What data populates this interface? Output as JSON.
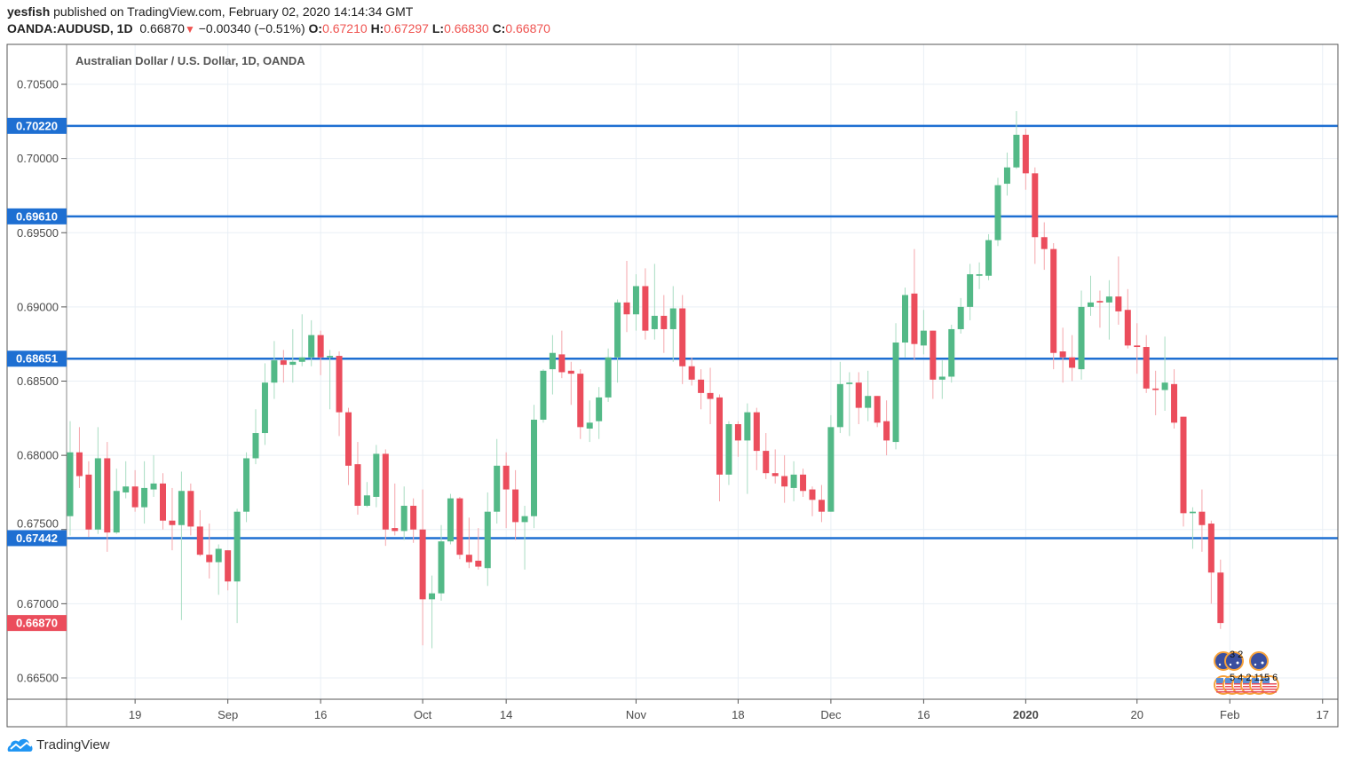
{
  "header": {
    "author": "yesfish",
    "published_text": "published on TradingView.com, February 02, 2020 14:14:34 GMT",
    "symbol": "OANDA:AUDUSD, 1D",
    "last": "0.66870",
    "change_icon": "triangle-down-icon",
    "change": "−0.00340 (−0.51%)",
    "o_label": "O:",
    "o": "0.67210",
    "h_label": "H:",
    "h": "0.67297",
    "l_label": "L:",
    "l": "0.66830",
    "c_label": "C:",
    "c": "0.66870"
  },
  "colors": {
    "up": "#53b987",
    "down": "#eb4d5c",
    "up_wick": "#a8dcc2",
    "down_wick": "#f5a6ab",
    "level": "#1e6fd2",
    "grid": "#e9eff5",
    "last": "#eb4d5c"
  },
  "chart_data": {
    "type": "candlestick",
    "title": "Australian Dollar / U.S. Dollar, 1D, OANDA",
    "ylim": [
      0.6628,
      0.7082
    ],
    "y_ticks": [
      "0.70500",
      "0.70000",
      "0.69500",
      "0.69000",
      "0.68500",
      "0.68000",
      "0.67500",
      "0.67000",
      "0.66500"
    ],
    "x_ticks": [
      {
        "index": 7,
        "label": "19"
      },
      {
        "index": 17,
        "label": "Sep"
      },
      {
        "index": 27,
        "label": "16"
      },
      {
        "index": 38,
        "label": "Oct"
      },
      {
        "index": 47,
        "label": "14"
      },
      {
        "index": 61,
        "label": "Nov"
      },
      {
        "index": 72,
        "label": "18"
      },
      {
        "index": 82,
        "label": "Dec"
      },
      {
        "index": 92,
        "label": "16"
      },
      {
        "index": 103,
        "label": "2020",
        "bold": true
      },
      {
        "index": 115,
        "label": "20"
      },
      {
        "index": 125,
        "label": "Feb"
      },
      {
        "index": 135,
        "label": "17"
      }
    ],
    "levels": [
      "0.70220",
      "0.69610",
      "0.68651",
      "0.67442"
    ],
    "last_price": "0.66870",
    "ohlc_fields": [
      "open",
      "high",
      "low",
      "close"
    ],
    "candles": [
      [
        0.6759,
        0.6823,
        0.6746,
        0.6802
      ],
      [
        0.6802,
        0.6819,
        0.6778,
        0.6786
      ],
      [
        0.6787,
        0.6796,
        0.6745,
        0.675
      ],
      [
        0.675,
        0.6819,
        0.6747,
        0.6798
      ],
      [
        0.6798,
        0.6809,
        0.6735,
        0.6748
      ],
      [
        0.6748,
        0.6791,
        0.6747,
        0.6776
      ],
      [
        0.6775,
        0.6796,
        0.6771,
        0.6779
      ],
      [
        0.6779,
        0.679,
        0.6762,
        0.6765
      ],
      [
        0.6765,
        0.6796,
        0.6754,
        0.6778
      ],
      [
        0.6777,
        0.68,
        0.6772,
        0.6781
      ],
      [
        0.6781,
        0.6788,
        0.675,
        0.6756
      ],
      [
        0.6756,
        0.6778,
        0.6736,
        0.6753
      ],
      [
        0.6753,
        0.6789,
        0.6689,
        0.6776
      ],
      [
        0.6776,
        0.6781,
        0.6746,
        0.6752
      ],
      [
        0.6752,
        0.6763,
        0.6732,
        0.6733
      ],
      [
        0.6733,
        0.6754,
        0.6717,
        0.6728
      ],
      [
        0.6728,
        0.674,
        0.6706,
        0.6737
      ],
      [
        0.6736,
        0.6736,
        0.6709,
        0.6715
      ],
      [
        0.6715,
        0.6764,
        0.6687,
        0.6762
      ],
      [
        0.6762,
        0.6802,
        0.6755,
        0.6798
      ],
      [
        0.6798,
        0.6831,
        0.6794,
        0.6815
      ],
      [
        0.6815,
        0.6862,
        0.6807,
        0.6849
      ],
      [
        0.6849,
        0.6877,
        0.6838,
        0.6864
      ],
      [
        0.6864,
        0.6871,
        0.6849,
        0.6861
      ],
      [
        0.6861,
        0.6885,
        0.6849,
        0.6863
      ],
      [
        0.6863,
        0.6895,
        0.686,
        0.6866
      ],
      [
        0.6866,
        0.6891,
        0.686,
        0.6881
      ],
      [
        0.6881,
        0.6884,
        0.6854,
        0.6866
      ],
      [
        0.6866,
        0.6871,
        0.6831,
        0.6867
      ],
      [
        0.6867,
        0.687,
        0.6813,
        0.6829
      ],
      [
        0.6829,
        0.6832,
        0.678,
        0.6793
      ],
      [
        0.6794,
        0.6809,
        0.676,
        0.6766
      ],
      [
        0.6766,
        0.6782,
        0.6765,
        0.6773
      ],
      [
        0.6772,
        0.6807,
        0.6765,
        0.6801
      ],
      [
        0.6801,
        0.6804,
        0.6739,
        0.675
      ],
      [
        0.6751,
        0.6781,
        0.6746,
        0.6749
      ],
      [
        0.6749,
        0.6779,
        0.6743,
        0.6766
      ],
      [
        0.6766,
        0.6771,
        0.6741,
        0.675
      ],
      [
        0.675,
        0.6777,
        0.6672,
        0.6703
      ],
      [
        0.6703,
        0.6719,
        0.667,
        0.6707
      ],
      [
        0.6707,
        0.6753,
        0.6702,
        0.6742
      ],
      [
        0.6742,
        0.6774,
        0.674,
        0.6771
      ],
      [
        0.6771,
        0.6772,
        0.673,
        0.6733
      ],
      [
        0.6733,
        0.6758,
        0.6724,
        0.6728
      ],
      [
        0.6729,
        0.6751,
        0.6723,
        0.6725
      ],
      [
        0.6724,
        0.6775,
        0.6712,
        0.6762
      ],
      [
        0.6762,
        0.6811,
        0.6754,
        0.6793
      ],
      [
        0.6793,
        0.6802,
        0.6751,
        0.6777
      ],
      [
        0.6777,
        0.679,
        0.6743,
        0.6755
      ],
      [
        0.6755,
        0.6766,
        0.6723,
        0.6759
      ],
      [
        0.6759,
        0.6834,
        0.6751,
        0.6824
      ],
      [
        0.6824,
        0.6858,
        0.6822,
        0.6857
      ],
      [
        0.6858,
        0.6881,
        0.6841,
        0.6869
      ],
      [
        0.6868,
        0.6884,
        0.6852,
        0.6856
      ],
      [
        0.6857,
        0.6863,
        0.6834,
        0.6855
      ],
      [
        0.6855,
        0.6858,
        0.6811,
        0.6819
      ],
      [
        0.6818,
        0.6837,
        0.6809,
        0.6822
      ],
      [
        0.6823,
        0.6846,
        0.6811,
        0.6839
      ],
      [
        0.6839,
        0.6872,
        0.6836,
        0.6866
      ],
      [
        0.6866,
        0.6905,
        0.6849,
        0.6903
      ],
      [
        0.6903,
        0.6931,
        0.6883,
        0.6895
      ],
      [
        0.6895,
        0.6922,
        0.6884,
        0.6914
      ],
      [
        0.6914,
        0.6926,
        0.6878,
        0.6884
      ],
      [
        0.6885,
        0.6929,
        0.6878,
        0.6894
      ],
      [
        0.6894,
        0.6908,
        0.6869,
        0.6885
      ],
      [
        0.6885,
        0.6914,
        0.6863,
        0.6899
      ],
      [
        0.6899,
        0.6908,
        0.6848,
        0.686
      ],
      [
        0.686,
        0.6866,
        0.6847,
        0.6851
      ],
      [
        0.6851,
        0.6858,
        0.6831,
        0.6842
      ],
      [
        0.6842,
        0.6859,
        0.6821,
        0.6838
      ],
      [
        0.6839,
        0.6841,
        0.6769,
        0.6787
      ],
      [
        0.6787,
        0.6823,
        0.678,
        0.6821
      ],
      [
        0.6821,
        0.6823,
        0.6799,
        0.681
      ],
      [
        0.681,
        0.6835,
        0.6774,
        0.6829
      ],
      [
        0.6829,
        0.6832,
        0.679,
        0.6803
      ],
      [
        0.6803,
        0.6815,
        0.6784,
        0.6788
      ],
      [
        0.6788,
        0.6804,
        0.6781,
        0.6786
      ],
      [
        0.6786,
        0.68,
        0.6768,
        0.6779
      ],
      [
        0.6778,
        0.6796,
        0.6769,
        0.6787
      ],
      [
        0.6787,
        0.6791,
        0.6772,
        0.6776
      ],
      [
        0.6777,
        0.6779,
        0.6759,
        0.677
      ],
      [
        0.677,
        0.678,
        0.6755,
        0.6762
      ],
      [
        0.6762,
        0.6827,
        0.6762,
        0.6819
      ],
      [
        0.6819,
        0.6863,
        0.6815,
        0.6848
      ],
      [
        0.6848,
        0.6856,
        0.6813,
        0.6849
      ],
      [
        0.6849,
        0.6856,
        0.6821,
        0.6832
      ],
      [
        0.6832,
        0.6857,
        0.6823,
        0.684
      ],
      [
        0.684,
        0.684,
        0.6819,
        0.6822
      ],
      [
        0.6823,
        0.6837,
        0.68,
        0.681
      ],
      [
        0.6809,
        0.6889,
        0.6804,
        0.6876
      ],
      [
        0.6876,
        0.6913,
        0.6866,
        0.6908
      ],
      [
        0.6909,
        0.6939,
        0.6864,
        0.6875
      ],
      [
        0.6874,
        0.6898,
        0.6868,
        0.6884
      ],
      [
        0.6884,
        0.6884,
        0.6838,
        0.6851
      ],
      [
        0.6851,
        0.6864,
        0.6838,
        0.6853
      ],
      [
        0.6853,
        0.6888,
        0.6849,
        0.6885
      ],
      [
        0.6885,
        0.6906,
        0.6882,
        0.69
      ],
      [
        0.69,
        0.6929,
        0.6891,
        0.6922
      ],
      [
        0.6921,
        0.693,
        0.6912,
        0.6922
      ],
      [
        0.6921,
        0.6949,
        0.6918,
        0.6945
      ],
      [
        0.6945,
        0.6987,
        0.6941,
        0.6982
      ],
      [
        0.6983,
        0.7004,
        0.6975,
        0.6994
      ],
      [
        0.6994,
        0.7032,
        0.6993,
        0.7016
      ],
      [
        0.7016,
        0.702,
        0.6979,
        0.699
      ],
      [
        0.699,
        0.6994,
        0.6929,
        0.6947
      ],
      [
        0.6947,
        0.6957,
        0.6925,
        0.6939
      ],
      [
        0.6939,
        0.6943,
        0.6858,
        0.6869
      ],
      [
        0.687,
        0.6886,
        0.6849,
        0.6866
      ],
      [
        0.6866,
        0.6881,
        0.685,
        0.6859
      ],
      [
        0.6858,
        0.6911,
        0.6851,
        0.69
      ],
      [
        0.69,
        0.6921,
        0.6894,
        0.6903
      ],
      [
        0.6904,
        0.6911,
        0.6886,
        0.6903
      ],
      [
        0.6903,
        0.6918,
        0.6878,
        0.6907
      ],
      [
        0.6907,
        0.6934,
        0.6888,
        0.6897
      ],
      [
        0.6898,
        0.6912,
        0.6872,
        0.6874
      ],
      [
        0.6874,
        0.6889,
        0.6855,
        0.6873
      ],
      [
        0.6873,
        0.6881,
        0.6842,
        0.6845
      ],
      [
        0.6845,
        0.6857,
        0.6827,
        0.6844
      ],
      [
        0.6844,
        0.688,
        0.683,
        0.6849
      ],
      [
        0.6848,
        0.6858,
        0.6818,
        0.6822
      ],
      [
        0.6826,
        0.6826,
        0.6752,
        0.6761
      ],
      [
        0.6761,
        0.6765,
        0.6737,
        0.6762
      ],
      [
        0.6762,
        0.6777,
        0.6735,
        0.6753
      ],
      [
        0.6754,
        0.6756,
        0.67,
        0.6721
      ],
      [
        0.6721,
        0.67297,
        0.6683,
        0.6687
      ]
    ],
    "events": {
      "au_label": "3 2",
      "us_label": "5 4 2 115 6",
      "au_icon": "australia-flag-icon",
      "us_icon": "us-flag-icon"
    }
  },
  "footer": {
    "brand": "TradingView",
    "logo_icon": "tradingview-logo-icon"
  }
}
